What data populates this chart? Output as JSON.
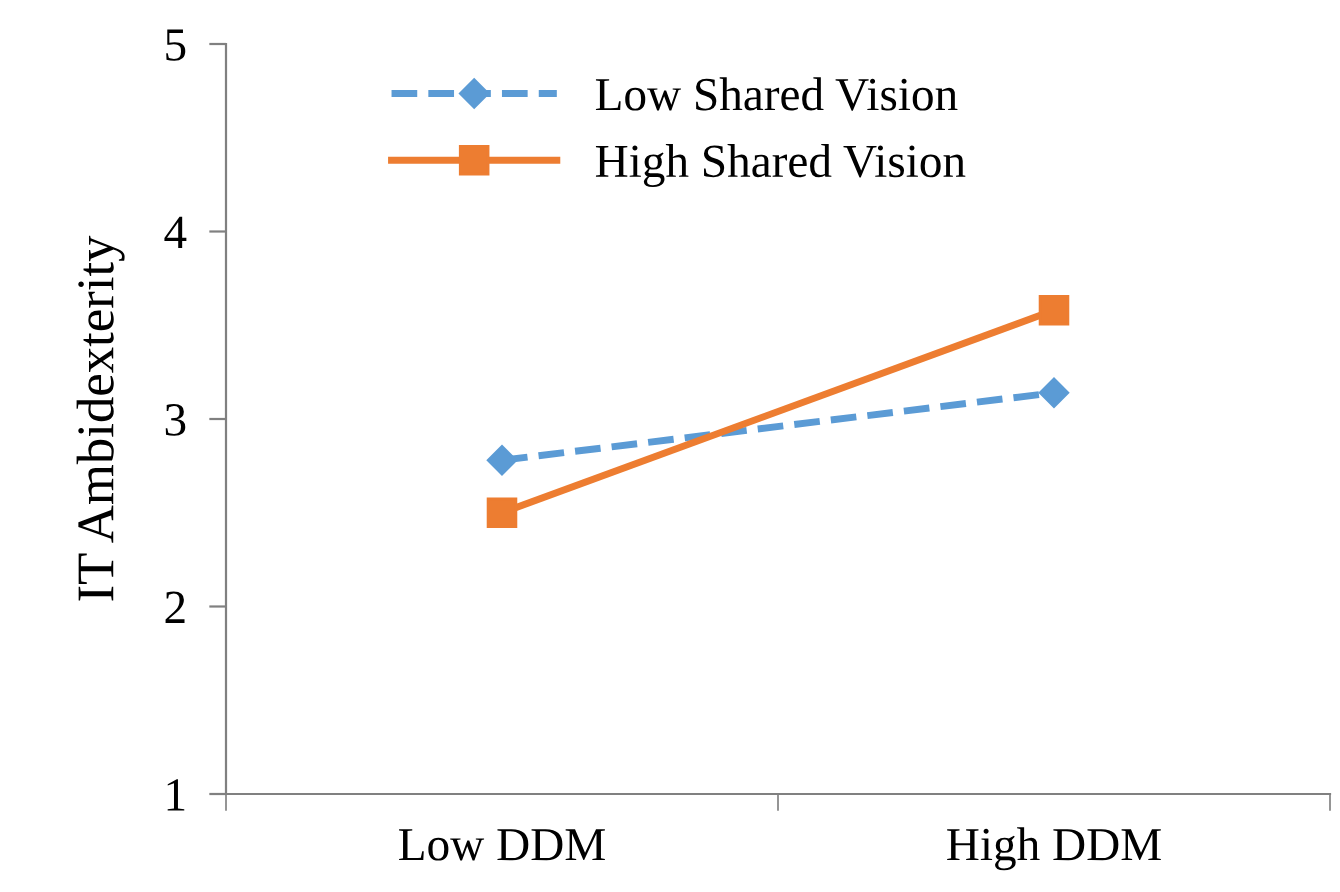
{
  "chart_data": {
    "type": "line",
    "ylabel": "IT Ambidexterity",
    "categories": [
      "Low DDM",
      "High DDM"
    ],
    "series": [
      {
        "name": "Low Shared Vision",
        "color": "#5b9bd5",
        "values": [
          2.78,
          3.14
        ],
        "marker": "diamond",
        "line_style": "dashed"
      },
      {
        "name": "High Shared Vision",
        "color": "#ed7d31",
        "values": [
          2.5,
          3.58
        ],
        "marker": "square",
        "line_style": "solid"
      }
    ],
    "ylim": [
      1,
      5
    ],
    "yticks": [
      1,
      2,
      3,
      4,
      5
    ],
    "grid": false,
    "legend": "top left"
  }
}
